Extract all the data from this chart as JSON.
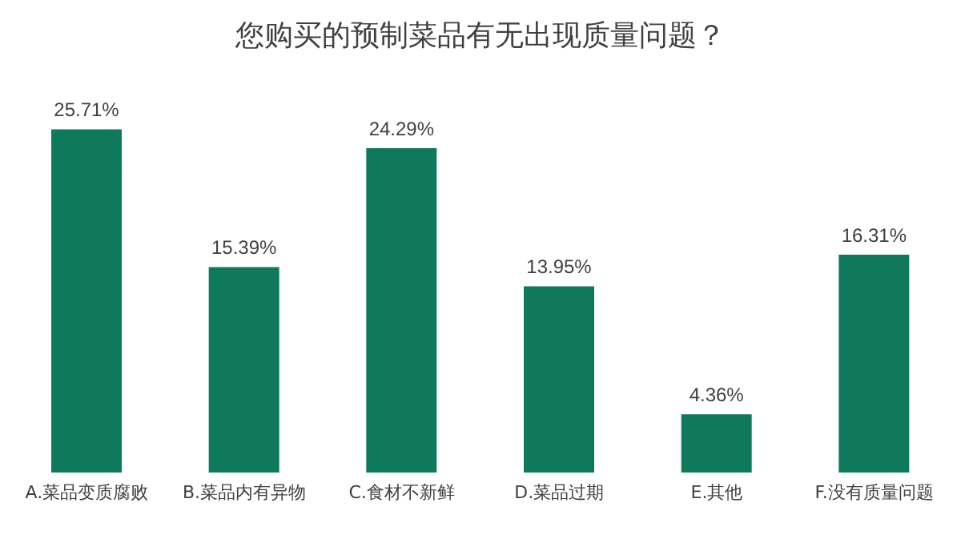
{
  "chart_data": {
    "type": "bar",
    "title": "您购买的预制菜品有无出现质量问题？",
    "categories": [
      "A.菜品变质腐败",
      "B.菜品内有异物",
      "C.食材不新鲜",
      "D.菜品过期",
      "E.其他",
      "F.没有质量问题"
    ],
    "values": [
      25.71,
      15.39,
      24.29,
      13.95,
      4.36,
      16.31
    ],
    "value_labels": [
      "25.71%",
      "15.39%",
      "24.29%",
      "13.95%",
      "4.36%",
      "16.31%"
    ],
    "color": "#0e7a5b",
    "grid": false,
    "legend": false
  }
}
